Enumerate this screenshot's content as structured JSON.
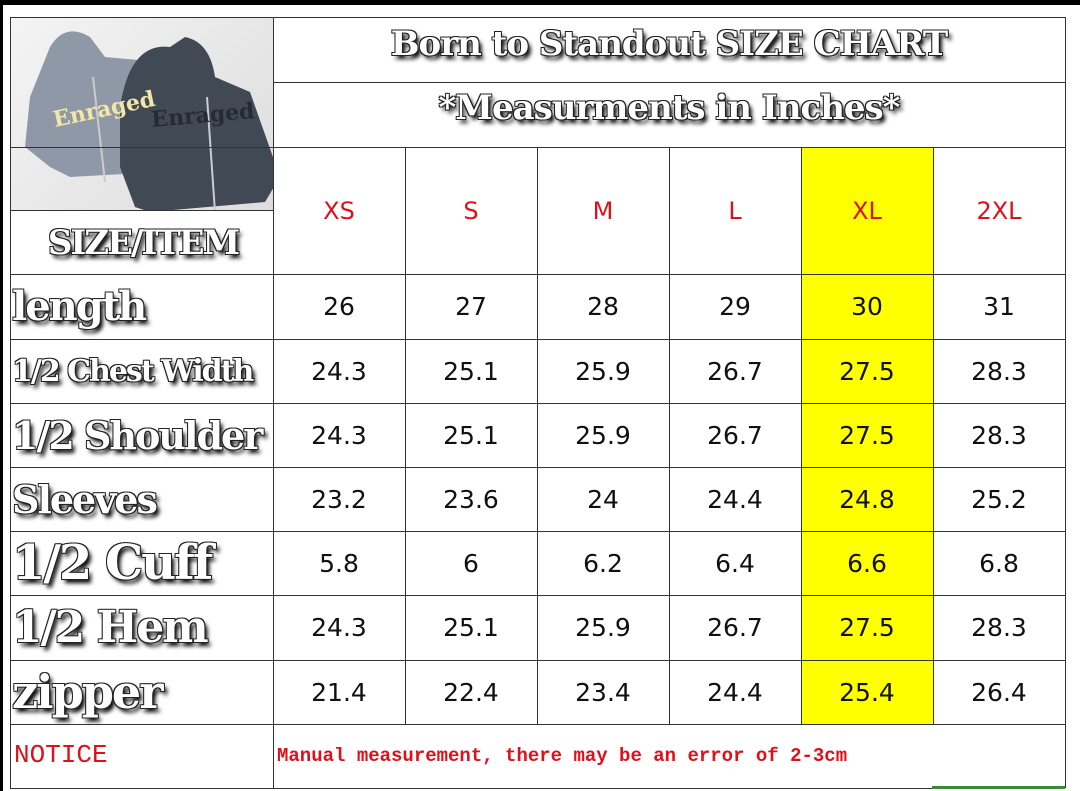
{
  "header": {
    "title": "Born to Standout SIZE CHART",
    "subtitle": "*Measurments in Inches*",
    "corner_label": "SIZE/ITEM"
  },
  "sizes": [
    "XS",
    "S",
    "M",
    "L",
    "XL",
    "2XL"
  ],
  "highlight_size": "XL",
  "highlight_color": "#ffff00",
  "size_color": "#e0101a",
  "rows": [
    {
      "label": "length",
      "values": [
        "26",
        "27",
        "28",
        "29",
        "30",
        "31"
      ]
    },
    {
      "label": "1/2 Chest Width",
      "values": [
        "24.3",
        "25.1",
        "25.9",
        "26.7",
        "27.5",
        "28.3"
      ]
    },
    {
      "label": "1/2 Shoulder",
      "values": [
        "24.3",
        "25.1",
        "25.9",
        "26.7",
        "27.5",
        "28.3"
      ]
    },
    {
      "label": "Sleeves",
      "values": [
        "23.2",
        "23.6",
        "24",
        "24.4",
        "24.8",
        "25.2"
      ]
    },
    {
      "label": "1/2 Cuff",
      "values": [
        "5.8",
        "6",
        "6.2",
        "6.4",
        "6.6",
        "6.8"
      ]
    },
    {
      "label": "1/2 Hem",
      "values": [
        "24.3",
        "25.1",
        "25.9",
        "26.7",
        "27.5",
        "28.3"
      ]
    },
    {
      "label": "zipper",
      "values": [
        "21.4",
        "22.4",
        "23.4",
        "24.4",
        "25.4",
        "26.4"
      ]
    }
  ],
  "notice": {
    "label": "NOTICE",
    "text": "Manual measurement, there may be an error of 2-3cm"
  }
}
